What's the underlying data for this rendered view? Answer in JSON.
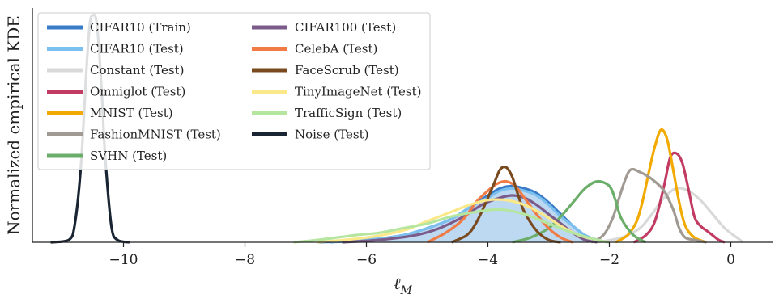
{
  "chart_data": {
    "type": "line",
    "ylabel": "Normalized empirical KDE",
    "xlabel": "ℓ_M",
    "xlim": [
      -11.5,
      0.7
    ],
    "ylim": [
      0,
      1.0
    ],
    "xticks": [
      -10,
      -8,
      -6,
      -4,
      -2,
      0
    ],
    "xtick_labels": [
      "−10",
      "−8",
      "−6",
      "−4",
      "−2",
      "0"
    ],
    "legend_position": "top-left",
    "grid": false,
    "series": [
      {
        "name": "CIFAR10 (Train)",
        "color": "#3a7bc8",
        "filled": true,
        "fill_color": "#b6d4ef",
        "x": [
          -6.8,
          -6.0,
          -5.4,
          -5.0,
          -4.6,
          -4.3,
          -4.0,
          -3.8,
          -3.6,
          -3.4,
          -3.2,
          -3.0,
          -2.8,
          -2.6,
          -2.4,
          -2.2,
          -2.0
        ],
        "y": [
          0.0,
          0.01,
          0.03,
          0.06,
          0.1,
          0.15,
          0.2,
          0.23,
          0.24,
          0.23,
          0.21,
          0.17,
          0.12,
          0.07,
          0.03,
          0.01,
          0.0
        ]
      },
      {
        "name": "CIFAR10 (Test)",
        "color": "#7cc0ef",
        "x": [
          -6.6,
          -6.0,
          -5.4,
          -5.0,
          -4.6,
          -4.3,
          -4.0,
          -3.8,
          -3.6,
          -3.4,
          -3.2,
          -3.0,
          -2.8,
          -2.6,
          -2.4,
          -2.2,
          -2.0
        ],
        "y": [
          0.0,
          0.01,
          0.03,
          0.06,
          0.1,
          0.15,
          0.19,
          0.22,
          0.23,
          0.22,
          0.2,
          0.16,
          0.11,
          0.07,
          0.03,
          0.01,
          0.0
        ]
      },
      {
        "name": "Constant (Test)",
        "color": "#d9d9d9",
        "x": [
          -2.2,
          -1.8,
          -1.5,
          -1.3,
          -1.1,
          -0.9,
          -0.7,
          -0.5,
          -0.3,
          -0.1,
          0.1,
          0.2
        ],
        "y": [
          0.0,
          0.02,
          0.06,
          0.12,
          0.19,
          0.23,
          0.22,
          0.18,
          0.12,
          0.06,
          0.02,
          0.0
        ]
      },
      {
        "name": "Omniglot (Test)",
        "color": "#c23b62",
        "x": [
          -1.6,
          -1.4,
          -1.25,
          -1.1,
          -1.0,
          -0.9,
          -0.8,
          -0.7,
          -0.6,
          -0.5,
          -0.4,
          -0.3,
          -0.2,
          -0.1
        ],
        "y": [
          0.0,
          0.03,
          0.09,
          0.24,
          0.36,
          0.38,
          0.34,
          0.23,
          0.11,
          0.07,
          0.05,
          0.03,
          0.01,
          0.0
        ]
      },
      {
        "name": "MNIST (Test)",
        "color": "#f2a900",
        "x": [
          -1.9,
          -1.7,
          -1.55,
          -1.45,
          -1.35,
          -1.25,
          -1.15,
          -1.05,
          -0.95,
          -0.85,
          -0.75,
          -0.6,
          -0.4
        ],
        "y": [
          0.0,
          0.03,
          0.09,
          0.18,
          0.3,
          0.41,
          0.48,
          0.44,
          0.31,
          0.17,
          0.07,
          0.02,
          0.0
        ]
      },
      {
        "name": "FashionMNIST (Test)",
        "color": "#a09a92",
        "x": [
          -2.3,
          -2.1,
          -1.95,
          -1.85,
          -1.75,
          -1.65,
          -1.5,
          -1.3,
          -1.1,
          -0.95,
          -0.85,
          -0.75,
          -0.6,
          -0.4
        ],
        "y": [
          0.0,
          0.03,
          0.1,
          0.18,
          0.26,
          0.31,
          0.3,
          0.27,
          0.22,
          0.14,
          0.06,
          0.02,
          0.01,
          0.0
        ]
      },
      {
        "name": "SVHN (Test)",
        "color": "#6aae6a",
        "x": [
          -3.6,
          -3.3,
          -3.0,
          -2.8,
          -2.6,
          -2.4,
          -2.2,
          -2.0,
          -1.9,
          -1.8,
          -1.6,
          -1.4
        ],
        "y": [
          0.0,
          0.02,
          0.06,
          0.11,
          0.17,
          0.23,
          0.26,
          0.24,
          0.18,
          0.1,
          0.03,
          0.0
        ]
      },
      {
        "name": "CIFAR100 (Test)",
        "color": "#7a5b8a",
        "x": [
          -6.4,
          -5.8,
          -5.2,
          -4.8,
          -4.4,
          -4.1,
          -3.8,
          -3.6,
          -3.4,
          -3.2,
          -3.0,
          -2.8,
          -2.6,
          -2.4,
          -2.2
        ],
        "y": [
          0.0,
          0.01,
          0.03,
          0.06,
          0.11,
          0.16,
          0.19,
          0.2,
          0.19,
          0.16,
          0.12,
          0.08,
          0.04,
          0.01,
          0.0
        ]
      },
      {
        "name": "CelebA (Test)",
        "color": "#f07b45",
        "x": [
          -5.0,
          -4.7,
          -4.4,
          -4.2,
          -4.0,
          -3.85,
          -3.7,
          -3.55,
          -3.4,
          -3.2,
          -3.0,
          -2.8,
          -2.6
        ],
        "y": [
          0.0,
          0.04,
          0.1,
          0.17,
          0.22,
          0.25,
          0.26,
          0.24,
          0.19,
          0.12,
          0.06,
          0.02,
          0.0
        ]
      },
      {
        "name": "FaceScrub (Test)",
        "color": "#7a4a1f",
        "x": [
          -4.6,
          -4.35,
          -4.2,
          -4.05,
          -3.9,
          -3.8,
          -3.7,
          -3.6,
          -3.5,
          -3.4,
          -3.2,
          -3.0,
          -2.8
        ],
        "y": [
          0.0,
          0.03,
          0.08,
          0.16,
          0.25,
          0.31,
          0.32,
          0.28,
          0.2,
          0.13,
          0.05,
          0.01,
          0.0
        ]
      },
      {
        "name": "TinyImageNet (Test)",
        "color": "#fbe88b",
        "x": [
          -6.8,
          -6.0,
          -5.4,
          -5.0,
          -4.6,
          -4.3,
          -4.0,
          -3.7,
          -3.4,
          -3.1,
          -2.8,
          -2.5,
          -2.2,
          -2.0
        ],
        "y": [
          0.0,
          0.02,
          0.05,
          0.09,
          0.13,
          0.16,
          0.18,
          0.18,
          0.16,
          0.12,
          0.07,
          0.03,
          0.01,
          0.0
        ]
      },
      {
        "name": "TrafficSign (Test)",
        "color": "#b5e6a0",
        "x": [
          -7.2,
          -6.8,
          -6.2,
          -5.8,
          -5.4,
          -5.0,
          -4.6,
          -4.2,
          -3.8,
          -3.4,
          -3.0,
          -2.6,
          -2.2,
          -2.0
        ],
        "y": [
          0.0,
          0.01,
          0.03,
          0.04,
          0.06,
          0.08,
          0.11,
          0.13,
          0.14,
          0.12,
          0.08,
          0.04,
          0.01,
          0.0
        ]
      },
      {
        "name": "Noise (Test)",
        "color": "#1a2533",
        "x": [
          -11.2,
          -10.9,
          -10.8,
          -10.7,
          -10.6,
          -10.55,
          -10.5,
          -10.45,
          -10.4,
          -10.35,
          -10.3,
          -10.2,
          -10.1,
          -9.9
        ],
        "y": [
          0.0,
          0.01,
          0.08,
          0.33,
          0.78,
          0.94,
          0.97,
          0.95,
          0.82,
          0.6,
          0.36,
          0.07,
          0.01,
          0.0
        ]
      }
    ]
  }
}
